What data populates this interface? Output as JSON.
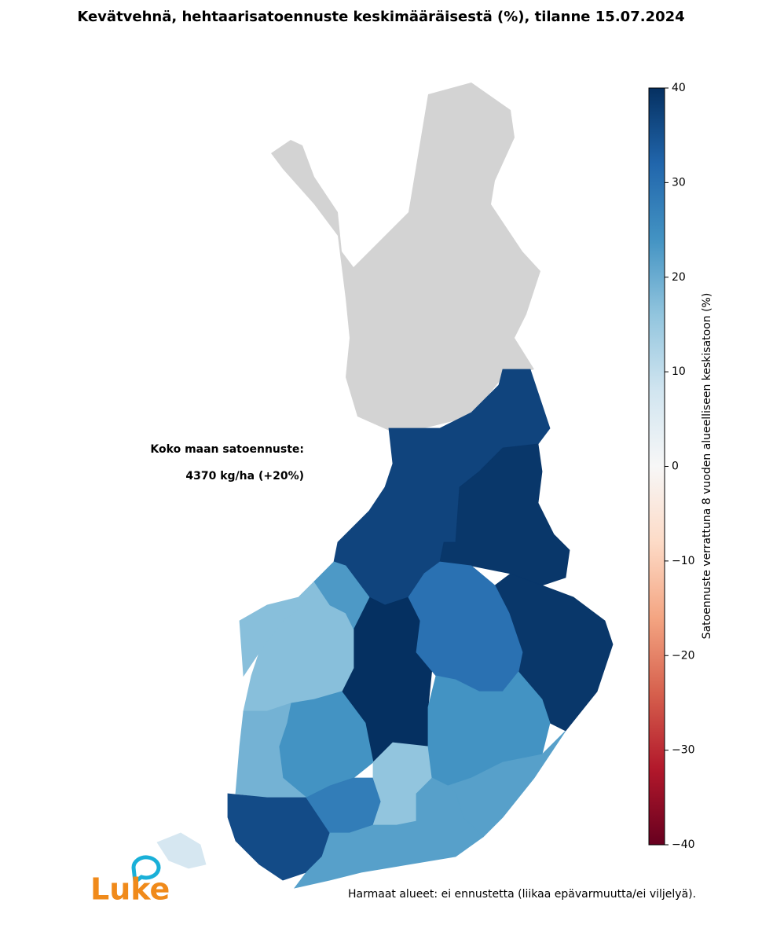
{
  "title": "Kevätvehnä, hehtaarisatoennuste keskimääräisestä (%), tilanne 15.07.2024",
  "annotations": [
    "Koko maan satoennuste:",
    "4370 kg/ha (+20%)"
  ],
  "footnote": "Harmaat alueet: ei ennustetta (liikaa epävarmuutta/ei viljelyä).",
  "logo": "Luke",
  "colorbar": {
    "label": "Satoennuste verrattuna 8 vuoden alueelliseen keskisatoon (%)",
    "colormap": "RdBu",
    "lim": [
      -40,
      40
    ],
    "ticks": [
      {
        "value": -40,
        "label": "−40"
      },
      {
        "value": -30,
        "label": "−30"
      },
      {
        "value": -20,
        "label": "−20"
      },
      {
        "value": -10,
        "label": "−10"
      },
      0,
      10,
      20,
      30,
      40
    ]
  },
  "no_data_color": "#d3d3d3",
  "regions": [
    {
      "value": 37
    },
    {
      "value": 39
    },
    {
      "value": 39
    },
    {
      "value": 40
    },
    {
      "value": 30
    },
    {
      "value": 17
    },
    {
      "value": 17
    },
    {
      "value": 23
    },
    {
      "value": 24
    },
    {
      "value": 19
    },
    {
      "value": 36
    },
    {
      "value": 28
    },
    {
      "value": 16
    },
    {
      "value": 24
    },
    {
      "value": 22
    },
    {
      "value": 22
    },
    {
      "value": 7
    }
  ]
}
